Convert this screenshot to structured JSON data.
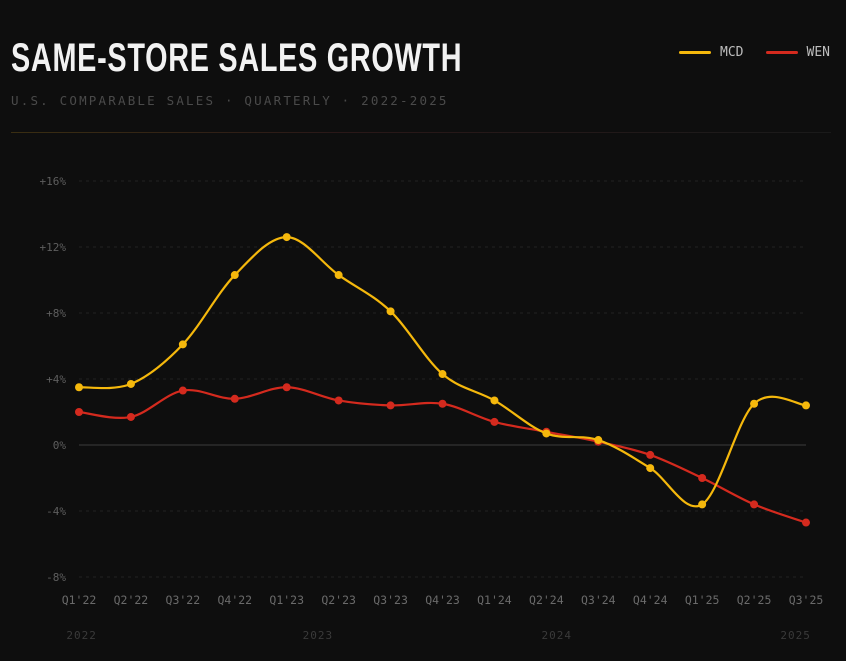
{
  "chart_data": {
    "type": "line",
    "title": "SAME-STORE SALES GROWTH",
    "subtitle": "U.S. COMPARABLE SALES · QUARTERLY · 2022-2025",
    "xlabel": "",
    "ylabel": "",
    "categories": [
      "Q1'22",
      "Q2'22",
      "Q3'22",
      "Q4'22",
      "Q1'23",
      "Q2'23",
      "Q3'23",
      "Q4'23",
      "Q1'24",
      "Q2'24",
      "Q3'24",
      "Q4'24",
      "Q1'25",
      "Q2'25",
      "Q3'25"
    ],
    "year_labels": [
      {
        "label": "2022",
        "at": 0.05
      },
      {
        "label": "2023",
        "at": 4.6
      },
      {
        "label": "2024",
        "at": 9.2
      },
      {
        "label": "2025",
        "at": 13.8
      }
    ],
    "ylim": [
      -8,
      16
    ],
    "yticks": [
      16,
      12,
      8,
      4,
      0,
      -4,
      -8
    ],
    "ytick_labels": [
      "+16%",
      "+12%",
      "+8%",
      "+4%",
      "0%",
      "-4%",
      "-8%"
    ],
    "grid": true,
    "legend_position": "top-right",
    "series": [
      {
        "name": "MCD",
        "color": "#f5b80c",
        "values": [
          3.5,
          3.7,
          6.1,
          10.3,
          12.6,
          10.3,
          8.1,
          4.3,
          2.7,
          0.7,
          0.3,
          -1.4,
          -3.6,
          2.5,
          2.4
        ]
      },
      {
        "name": "WEN",
        "color": "#d42a1e",
        "values": [
          2.0,
          1.7,
          3.3,
          2.8,
          3.5,
          2.7,
          2.4,
          2.5,
          1.4,
          0.8,
          0.2,
          -0.6,
          -2.0,
          -3.6,
          -4.7
        ]
      }
    ]
  }
}
